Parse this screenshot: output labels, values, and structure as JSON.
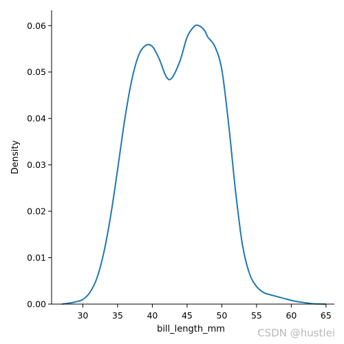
{
  "chart_data": {
    "type": "line",
    "xlabel": "bill_length_mm",
    "ylabel": "Density",
    "xlim": [
      25.5,
      66.2
    ],
    "ylim": [
      0.0,
      0.0633
    ],
    "x_ticks": [
      30,
      35,
      40,
      45,
      50,
      55,
      60,
      65
    ],
    "y_ticks": [
      0.0,
      0.01,
      0.02,
      0.03,
      0.04,
      0.05,
      0.06
    ],
    "y_tick_labels": [
      "0.00",
      "0.01",
      "0.02",
      "0.03",
      "0.04",
      "0.05",
      "0.06"
    ],
    "grid": false,
    "series": [
      {
        "color": "#1f77b4",
        "x": [
          27.0,
          28.0,
          29.0,
          30.0,
          31.0,
          32.0,
          33.0,
          34.0,
          35.0,
          36.0,
          37.0,
          38.0,
          39.0,
          40.0,
          41.0,
          42.0,
          42.8,
          44.0,
          45.0,
          46.0,
          46.7,
          47.5,
          48.0,
          49.0,
          50.0,
          51.0,
          52.0,
          53.0,
          54.0,
          55.0,
          56.0,
          57.0,
          58.0,
          59.0,
          60.0,
          61.0,
          62.0,
          63.0,
          64.0,
          65.0
        ],
        "y": [
          0.0,
          0.0002,
          0.0005,
          0.001,
          0.0025,
          0.0055,
          0.011,
          0.019,
          0.029,
          0.0395,
          0.048,
          0.0535,
          0.0557,
          0.0555,
          0.0528,
          0.049,
          0.0487,
          0.0525,
          0.0575,
          0.0598,
          0.06,
          0.059,
          0.0575,
          0.0555,
          0.0505,
          0.0385,
          0.024,
          0.0125,
          0.0065,
          0.0038,
          0.0025,
          0.002,
          0.0016,
          0.0012,
          0.0008,
          0.0005,
          0.0003,
          0.0001,
          3e-05,
          0.0
        ]
      }
    ]
  },
  "watermark": "CSDN @hustlei"
}
